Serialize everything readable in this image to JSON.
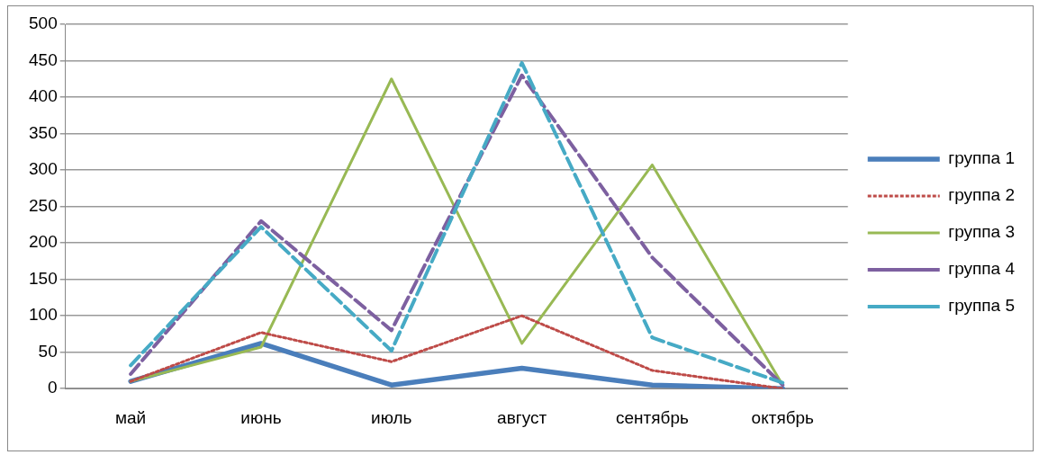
{
  "chart_data": {
    "type": "line",
    "categories": [
      "май",
      "июнь",
      "июль",
      "август",
      "сентябрь",
      "октябрь"
    ],
    "series": [
      {
        "name": "группа 1",
        "color": "#4a7ebb",
        "values": [
          10,
          62,
          5,
          28,
          5,
          0
        ],
        "line_style": "solid"
      },
      {
        "name": "группа 2",
        "color": "#be4b48",
        "values": [
          10,
          77,
          37,
          100,
          25,
          0
        ],
        "line_style": "dotted"
      },
      {
        "name": "группа 3",
        "color": "#98b954",
        "values": [
          10,
          57,
          425,
          62,
          307,
          5
        ],
        "line_style": "solid"
      },
      {
        "name": "группа 4",
        "color": "#7d60a0",
        "values": [
          20,
          230,
          80,
          430,
          180,
          5
        ],
        "line_style": "dashed"
      },
      {
        "name": "группа 5",
        "color": "#46aac5",
        "values": [
          32,
          222,
          52,
          447,
          70,
          8
        ],
        "line_style": "dashed"
      }
    ],
    "ylim": [
      0,
      500
    ],
    "yticks": [
      0,
      50,
      100,
      150,
      200,
      250,
      300,
      350,
      400,
      450,
      500
    ],
    "grid": "y",
    "legend": "right",
    "marker": "none"
  }
}
